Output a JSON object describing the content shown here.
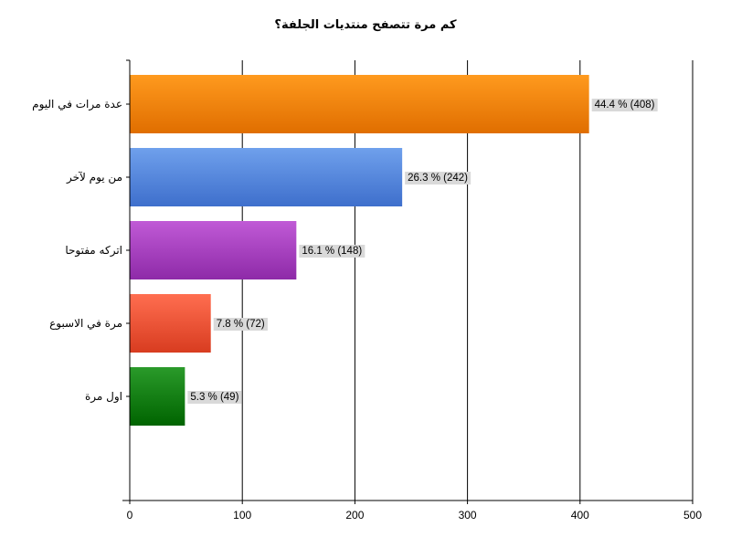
{
  "chart_data": {
    "type": "bar",
    "orientation": "horizontal",
    "title": "كم مرة تتصفح منتديات الجلفة؟",
    "xlabel": "",
    "ylabel": "",
    "xlim": [
      0,
      500
    ],
    "x_ticks": [
      "0",
      "100",
      "200",
      "300",
      "400",
      "500"
    ],
    "grid": "vertical",
    "categories": [
      "عدة مرات في اليوم",
      "من يوم لآخر",
      "اتركه مفتوحا",
      "مرة في الاسبوع",
      "اول مرة"
    ],
    "values": [
      408,
      242,
      148,
      72,
      49
    ],
    "data_labels": [
      "44.4 % (408)",
      "26.3 % (242)",
      "16.1 % (148)",
      "7.8 % (72)",
      "5.3 % (49)"
    ],
    "colors": [
      [
        "#ff9a1e",
        "#e06e00"
      ],
      [
        "#6fa0ec",
        "#3e6fcc"
      ],
      [
        "#c05ad6",
        "#8e2aa8"
      ],
      [
        "#ff6e50",
        "#d83c20"
      ],
      [
        "#2a9a2a",
        "#006400"
      ]
    ]
  }
}
